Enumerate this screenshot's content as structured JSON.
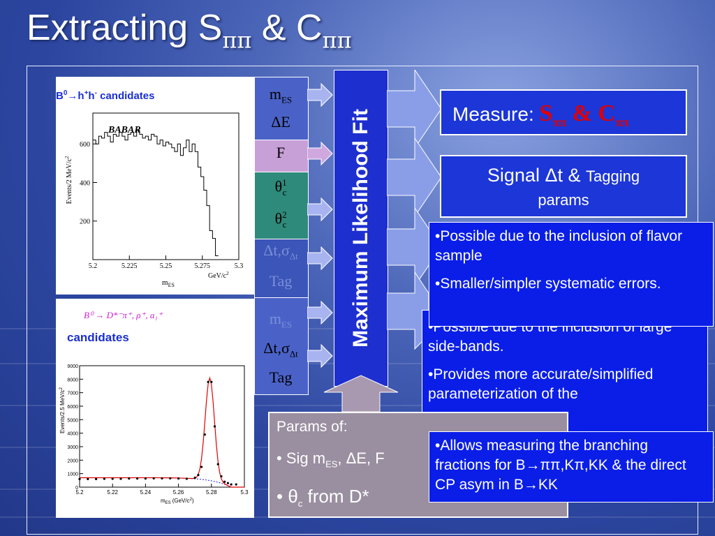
{
  "title": {
    "main": "Extracting S",
    "sub1": "ππ",
    "amp": " & C",
    "sub2": "ππ"
  },
  "top_panel": {
    "label_b0": "B",
    "label_sup0": "0",
    "label_arrow": "→",
    "label_h": "h",
    "label_sup1": "+",
    "label_h2": "h",
    "label_sup2": "-",
    "label_text": " candidates",
    "chart_data": {
      "type": "histogram",
      "title": "BABAR",
      "xlabel": "m",
      "xlabel_sub": "ES",
      "xunit": "GeV/c",
      "xunit_sup": "2",
      "ylabel": "Events/2 MeV/c",
      "ylabel_sup": "2",
      "xlim": [
        5.2,
        5.3
      ],
      "ylim": [
        0,
        760
      ],
      "xticks": [
        "5.2",
        "5.225",
        "5.25",
        "5.275",
        "5.3"
      ],
      "yticks": [
        "200",
        "400",
        "600"
      ],
      "x": [
        5.2,
        5.202,
        5.204,
        5.206,
        5.208,
        5.21,
        5.212,
        5.214,
        5.216,
        5.218,
        5.22,
        5.222,
        5.224,
        5.226,
        5.228,
        5.23,
        5.232,
        5.234,
        5.236,
        5.238,
        5.24,
        5.242,
        5.244,
        5.246,
        5.248,
        5.25,
        5.252,
        5.254,
        5.256,
        5.258,
        5.26,
        5.262,
        5.264,
        5.266,
        5.268,
        5.27,
        5.272,
        5.274,
        5.276,
        5.278,
        5.28,
        5.282,
        5.284
      ],
      "values": [
        620,
        600,
        640,
        630,
        660,
        640,
        610,
        650,
        640,
        660,
        640,
        620,
        650,
        660,
        640,
        670,
        650,
        630,
        640,
        620,
        650,
        640,
        600,
        620,
        590,
        610,
        600,
        580,
        560,
        600,
        540,
        580,
        620,
        560,
        600,
        560,
        480,
        430,
        360,
        280,
        150,
        110,
        20
      ]
    }
  },
  "bottom_panel": {
    "label_decay": "B⁰ → D*⁻π⁺, ρ⁺, a₁⁺",
    "label_text": "candidates",
    "chart_data": {
      "type": "scatter",
      "xlabel": "m",
      "xlabel_sub": "ES",
      "xunit": "(GeV/c",
      "xunit_sup": "2",
      "xunit_close": ")",
      "ylabel": "Events/2.5 MeV/c",
      "ylabel_sup": "2",
      "xlim": [
        5.2,
        5.3
      ],
      "ylim": [
        0,
        9000
      ],
      "xticks": [
        "5.2",
        "5.22",
        "5.24",
        "5.26",
        "5.28",
        "5.3"
      ],
      "yticks": [
        "0",
        "1000",
        "2000",
        "3000",
        "4000",
        "5000",
        "6000",
        "7000",
        "8000",
        "9000"
      ],
      "x": [
        5.2,
        5.205,
        5.21,
        5.215,
        5.22,
        5.225,
        5.23,
        5.235,
        5.24,
        5.245,
        5.25,
        5.255,
        5.26,
        5.265,
        5.27,
        5.272,
        5.274,
        5.276,
        5.278,
        5.28,
        5.282,
        5.284,
        5.286,
        5.288,
        5.29,
        5.292,
        5.295
      ],
      "values": [
        600,
        600,
        600,
        620,
        620,
        620,
        640,
        640,
        640,
        650,
        650,
        650,
        640,
        620,
        700,
        900,
        1500,
        3900,
        7800,
        7800,
        4500,
        1700,
        800,
        400,
        300,
        200,
        200
      ]
    }
  },
  "vars_top": [
    {
      "main": "m",
      "sub": "ES"
    },
    {
      "main": "ΔE"
    },
    {
      "main": "F"
    },
    {
      "main": "θ",
      "sub": "c",
      "sup": "1"
    },
    {
      "main": "θ",
      "sub": "c",
      "sup": "2"
    },
    {
      "main": "Δt,σ",
      "sub": "Δt"
    },
    {
      "main": "Tag"
    }
  ],
  "vars_bottom": [
    {
      "main": "m",
      "sub": "ES"
    },
    {
      "main": "Δt,σ",
      "sub": "Δt"
    },
    {
      "main": "Tag"
    }
  ],
  "ml_fit": "Maximum Likelihood Fit",
  "measure": {
    "label": "Measure: ",
    "s": "S",
    "s_sub": "ππ",
    "amp": " & C",
    "c_sub": "ππ"
  },
  "signal_box": {
    "line1_a": "Signal ",
    "line1_b": "Δt & ",
    "line1_c": "Tagging",
    "line2": "params"
  },
  "note_flavor": [
    "•Possible due to the inclusion of flavor sample",
    "•Smaller/simpler systematic errors."
  ],
  "note_sideband": [
    "•Possible due to the inclusion of large side-bands.",
    "•Provides more accurate/simplified parameterization of the"
  ],
  "note_bf": "•Allows measuring the branching fractions for B→ππ,Kπ,KK & the direct CP asym in B→KK",
  "params": {
    "heading": "Params of:",
    "line1": "• Sig m",
    "line1_sub": "ES",
    "line1_rest": ", ΔE, F",
    "line2_a": "• θ",
    "line2_sub": "c",
    "line2_rest": " from D*"
  },
  "colors": {
    "mlfit": "#1e2fd0",
    "note_bg": "#0a1ee8",
    "F_bg": "#c8a0d8",
    "theta_bg": "#2e8a7a",
    "measure_red": "#e00000"
  }
}
